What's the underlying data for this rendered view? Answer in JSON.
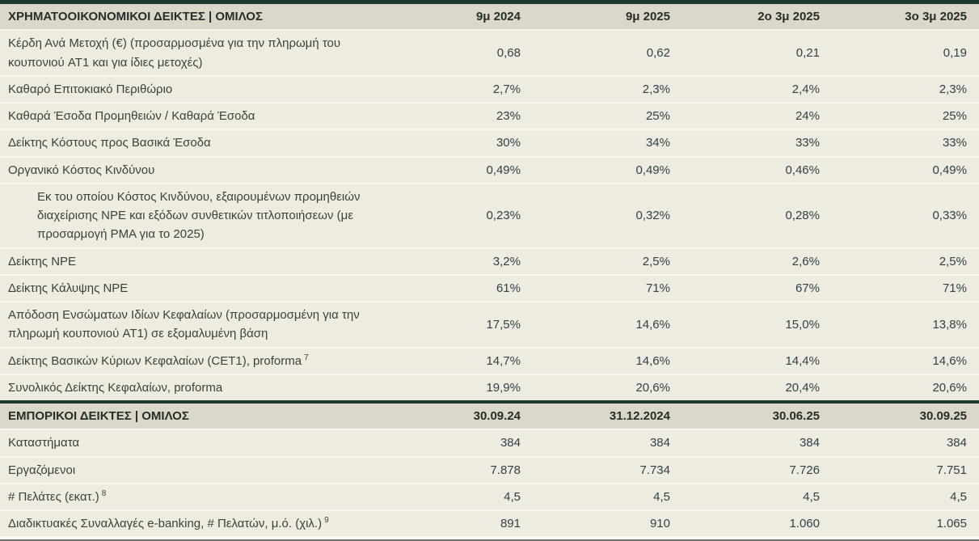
{
  "theme": {
    "accent": "#1d3b32",
    "header_band_bg": "#dbd8ca",
    "row_bg": "#eeebe0",
    "separator": "#f9f7ef",
    "label_text": "#3e403c",
    "value_text": "#2f4348",
    "header_text": "#262e29",
    "bottom_rule": "#75756e"
  },
  "financial_section": {
    "title": "ΧΡΗΜΑΤΟΟΙΚΟΝΟΜΙΚΟΙ ΔΕΙΚΤΕΣ | ΟΜΙΛΟΣ",
    "columns": [
      "9μ 2024",
      "9μ 2025",
      "2ο 3μ 2025",
      "3ο 3μ 2025"
    ],
    "rows": [
      {
        "label": "Κέρδη Ανά Μετοχή (€) (προσαρμοσμένα για την πληρωμή του κουπονιού AT1 και για ίδιες μετοχές)",
        "values": [
          "0,68",
          "0,62",
          "0,21",
          "0,19"
        ]
      },
      {
        "label": "Καθαρό Επιτοκιακό Περιθώριο",
        "values": [
          "2,7%",
          "2,3%",
          "2,4%",
          "2,3%"
        ]
      },
      {
        "label": "Καθαρά Έσοδα Προμηθειών / Καθαρά Έσοδα",
        "values": [
          "23%",
          "25%",
          "24%",
          "25%"
        ]
      },
      {
        "label": "Δείκτης Κόστους προς Βασικά Έσοδα",
        "values": [
          "30%",
          "34%",
          "33%",
          "33%"
        ]
      },
      {
        "label": "Οργανικό Κόστος Κινδύνου",
        "values": [
          "0,49%",
          "0,49%",
          "0,46%",
          "0,49%"
        ]
      },
      {
        "label": "Εκ του οποίου Κόστος Κινδύνου, εξαιρουμένων προμηθειών διαχείρισης NPE και εξόδων συνθετικών τιτλοποιήσεων (με προσαρμογή PMA για το 2025)",
        "values": [
          "0,23%",
          "0,32%",
          "0,28%",
          "0,33%"
        ]
      },
      {
        "label": "Δείκτης NPE",
        "values": [
          "3,2%",
          "2,5%",
          "2,6%",
          "2,5%"
        ]
      },
      {
        "label": "Δείκτης Κάλυψης NPE",
        "values": [
          "61%",
          "71%",
          "67%",
          "71%"
        ]
      },
      {
        "label": "Απόδοση Ενσώματων Ιδίων Κεφαλαίων (προσαρμοσμένη για την πληρωμή κουπονιού AT1) σε εξομαλυμένη βάση",
        "values": [
          "17,5%",
          "14,6%",
          "15,0%",
          "13,8%"
        ]
      },
      {
        "label": "Δείκτης Βασικών Κύριων Κεφαλαίων (CET1), proforma",
        "sup": "7",
        "values": [
          "14,7%",
          "14,6%",
          "14,4%",
          "14,6%"
        ]
      },
      {
        "label": "Συνολικός Δείκτης Κεφαλαίων, proforma",
        "values": [
          "19,9%",
          "20,6%",
          "20,4%",
          "20,6%"
        ]
      }
    ]
  },
  "commercial_section": {
    "title": "ΕΜΠΟΡΙΚΟΙ ΔΕΙΚΤΕΣ | ΟΜΙΛΟΣ",
    "columns": [
      "30.09.24",
      "31.12.2024",
      "30.06.25",
      "30.09.25"
    ],
    "rows": [
      {
        "label": "Καταστήματα",
        "values": [
          "384",
          "384",
          "384",
          "384"
        ]
      },
      {
        "label": "Εργαζόμενοι",
        "values": [
          "7.878",
          "7.734",
          "7.726",
          "7.751"
        ]
      },
      {
        "label": "# Πελάτες (εκατ.)",
        "sup": "8",
        "values": [
          "4,5",
          "4,5",
          "4,5",
          "4,5"
        ]
      },
      {
        "label": "Διαδικτυακές Συναλλαγές e-banking, # Πελατών, μ.ό. (χιλ.)",
        "sup": "9",
        "values": [
          "891",
          "910",
          "1.060",
          "1.065"
        ]
      }
    ]
  },
  "chart_data": [
    {
      "type": "table",
      "title": "ΧΡΗΜΑΤΟΟΙΚΟΝΟΜΙΚΟΙ ΔΕΙΚΤΕΣ | ΟΜΙΛΟΣ",
      "columns": [
        "9μ 2024",
        "9μ 2025",
        "2ο 3μ 2025",
        "3ο 3μ 2025"
      ],
      "rows": [
        [
          "Κέρδη Ανά Μετοχή (€) (προσαρμοσμένα για την πληρωμή του κουπονιού AT1 και για ίδιες μετοχές)",
          "0,68",
          "0,62",
          "0,21",
          "0,19"
        ],
        [
          "Καθαρό Επιτοκιακό Περιθώριο",
          "2,7%",
          "2,3%",
          "2,4%",
          "2,3%"
        ],
        [
          "Καθαρά Έσοδα Προμηθειών / Καθαρά Έσοδα",
          "23%",
          "25%",
          "24%",
          "25%"
        ],
        [
          "Δείκτης Κόστους προς Βασικά Έσοδα",
          "30%",
          "34%",
          "33%",
          "33%"
        ],
        [
          "Οργανικό Κόστος Κινδύνου",
          "0,49%",
          "0,49%",
          "0,46%",
          "0,49%"
        ],
        [
          "Εκ του οποίου Κόστος Κινδύνου, εξαιρουμένων προμηθειών διαχείρισης NPE και εξόδων συνθετικών τιτλοποιήσεων (με προσαρμογή PMA για το 2025)",
          "0,23%",
          "0,32%",
          "0,28%",
          "0,33%"
        ],
        [
          "Δείκτης NPE",
          "3,2%",
          "2,5%",
          "2,6%",
          "2,5%"
        ],
        [
          "Δείκτης Κάλυψης NPE",
          "61%",
          "71%",
          "67%",
          "71%"
        ],
        [
          "Απόδοση Ενσώματων Ιδίων Κεφαλαίων (προσαρμοσμένη για την πληρωμή κουπονιού AT1) σε εξομαλυμένη βάση",
          "17,5%",
          "14,6%",
          "15,0%",
          "13,8%"
        ],
        [
          "Δείκτης Βασικών Κύριων Κεφαλαίων (CET1), proforma 7",
          "14,7%",
          "14,6%",
          "14,4%",
          "14,6%"
        ],
        [
          "Συνολικός Δείκτης Κεφαλαίων, proforma",
          "19,9%",
          "20,6%",
          "20,4%",
          "20,6%"
        ]
      ]
    },
    {
      "type": "table",
      "title": "ΕΜΠΟΡΙΚΟΙ ΔΕΙΚΤΕΣ | ΟΜΙΛΟΣ",
      "columns": [
        "30.09.24",
        "31.12.2024",
        "30.06.25",
        "30.09.25"
      ],
      "rows": [
        [
          "Καταστήματα",
          "384",
          "384",
          "384",
          "384"
        ],
        [
          "Εργαζόμενοι",
          "7.878",
          "7.734",
          "7.726",
          "7.751"
        ],
        [
          "# Πελάτες (εκατ.) 8",
          "4,5",
          "4,5",
          "4,5",
          "4,5"
        ],
        [
          "Διαδικτυακές Συναλλαγές e-banking, # Πελατών, μ.ό. (χιλ.) 9",
          "891",
          "910",
          "1.060",
          "1.065"
        ]
      ]
    }
  ]
}
